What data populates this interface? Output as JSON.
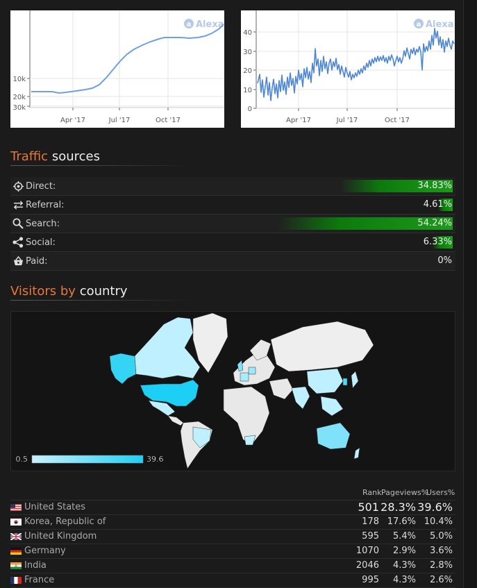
{
  "charts": {
    "rank": {
      "watermark": "Alexa",
      "yticks": [
        "10k",
        "20k",
        "30k"
      ],
      "xticks": [
        "Apr '17",
        "Jul '17",
        "Oct '17"
      ]
    },
    "reach": {
      "watermark": "Alexa",
      "yticks": [
        "40",
        "30",
        "20",
        "10",
        "0"
      ],
      "xticks": [
        "Apr '17",
        "Jul '17",
        "Oct '17"
      ]
    }
  },
  "traffic": {
    "title_accent": "Traffic",
    "title_rest": "sources",
    "rows": [
      {
        "label": "Direct:",
        "value": "34.83%",
        "fraction": 0.3483,
        "icon": "target-icon"
      },
      {
        "label": "Referral:",
        "value": "4.61%",
        "fraction": 0.0461,
        "icon": "arrows-icon"
      },
      {
        "label": "Search:",
        "value": "54.24%",
        "fraction": 0.5424,
        "icon": "search-icon"
      },
      {
        "label": "Social:",
        "value": "6.33%",
        "fraction": 0.0633,
        "icon": "share-icon"
      },
      {
        "label": "Paid:",
        "value": "0%",
        "fraction": 0,
        "icon": "basket-icon"
      }
    ]
  },
  "visitors": {
    "title_accent": "Visitors by",
    "title_rest": "country",
    "legend_min": "0.5",
    "legend_max": "39.6",
    "colors": {
      "low": "#c8f2ff",
      "high": "#1ecff5"
    }
  },
  "country_table": {
    "headers": {
      "rank": "Rank",
      "pageviews": "Pageviews%",
      "users": "Users%"
    },
    "rows": [
      {
        "country": "United States",
        "rank": "501",
        "pageviews": "28.3%",
        "users": "39.6%",
        "flag": "us"
      },
      {
        "country": "Korea, Republic of",
        "rank": "178",
        "pageviews": "17.6%",
        "users": "10.4%",
        "flag": "kr"
      },
      {
        "country": "United Kingdom",
        "rank": "595",
        "pageviews": "5.4%",
        "users": "5.0%",
        "flag": "gb"
      },
      {
        "country": "Germany",
        "rank": "1070",
        "pageviews": "2.9%",
        "users": "3.6%",
        "flag": "de"
      },
      {
        "country": "India",
        "rank": "2046",
        "pageviews": "4.3%",
        "users": "2.8%",
        "flag": "in"
      },
      {
        "country": "France",
        "rank": "995",
        "pageviews": "4.3%",
        "users": "2.6%",
        "flag": "fr"
      }
    ]
  }
}
